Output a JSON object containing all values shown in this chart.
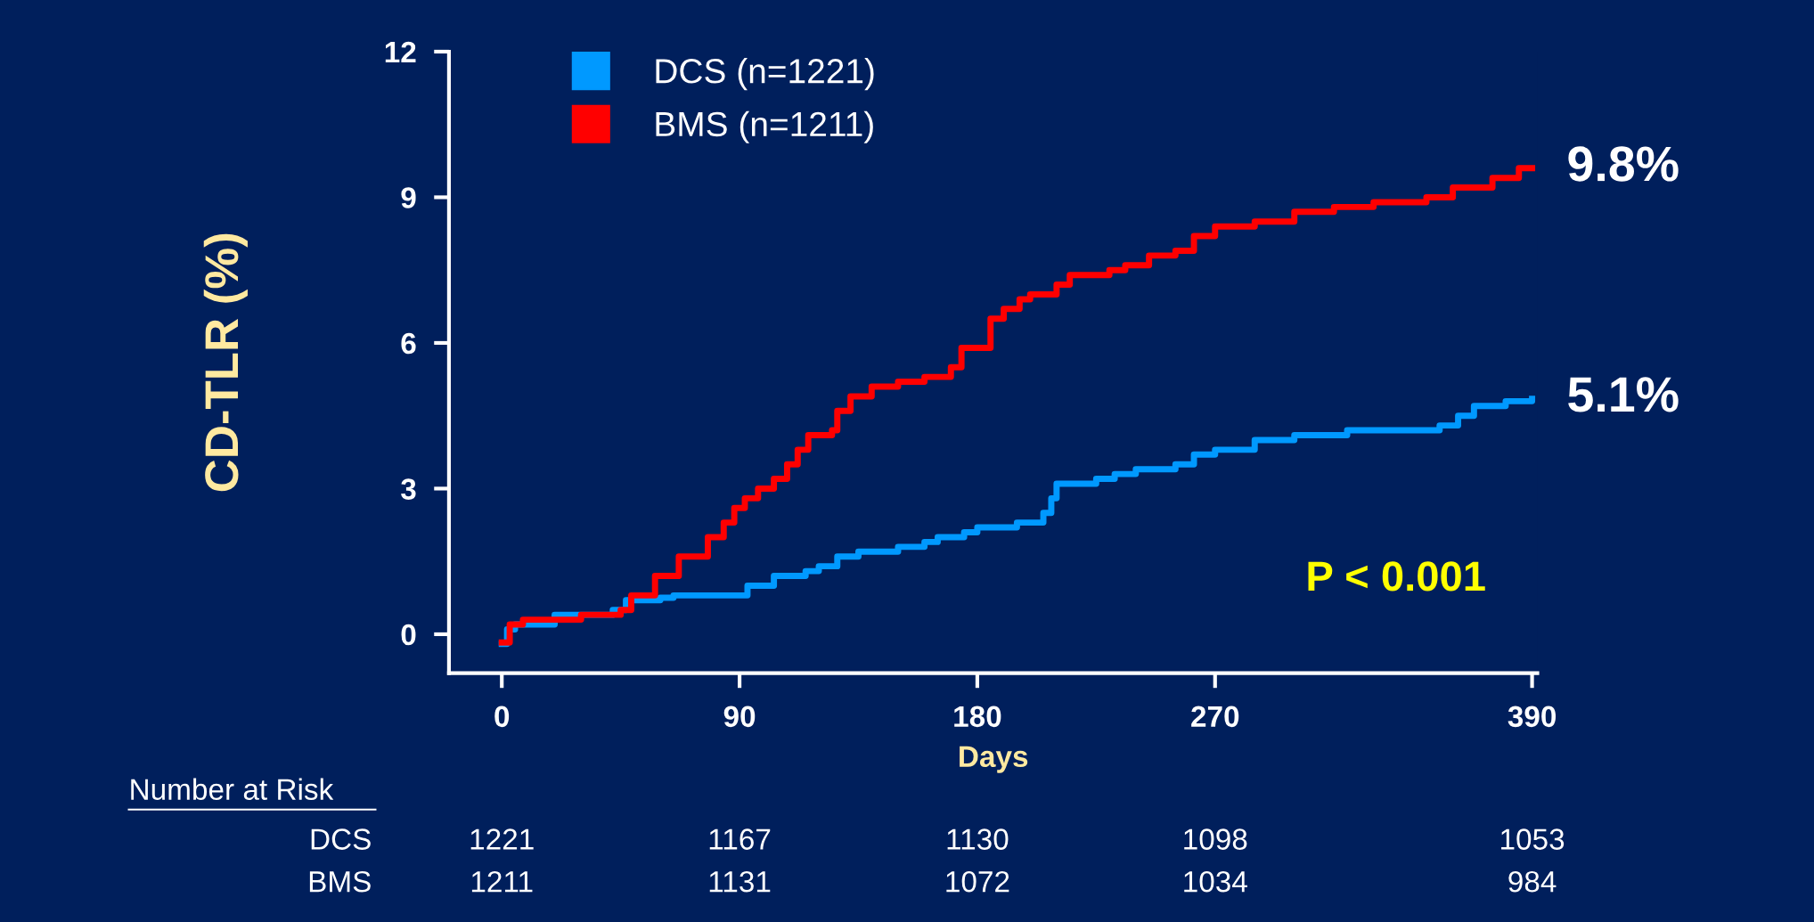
{
  "chart_data": {
    "type": "step",
    "xlabel": "Days",
    "ylabel": "CD-TLR (%)",
    "xlim": [
      -20,
      392
    ],
    "ylim": [
      -0.8,
      12
    ],
    "xticks": [
      0,
      90,
      180,
      270,
      390
    ],
    "yticks": [
      0,
      3,
      6,
      9,
      12
    ],
    "grid": false,
    "legend": "top left",
    "series": [
      {
        "name": "DCS (n=1221)",
        "color": "#0099ff",
        "x": [
          0,
          2,
          5,
          20,
          42,
          47,
          60,
          65,
          93,
          103,
          115,
          120,
          127,
          135,
          150,
          160,
          165,
          175,
          180,
          195,
          205,
          208,
          210,
          225,
          232,
          240,
          255,
          262,
          270,
          285,
          300,
          320,
          355,
          362,
          368,
          380,
          390
        ],
        "values": [
          -0.2,
          0.1,
          0.2,
          0.4,
          0.5,
          0.7,
          0.75,
          0.8,
          1.0,
          1.2,
          1.3,
          1.4,
          1.6,
          1.7,
          1.8,
          1.9,
          2.0,
          2.1,
          2.2,
          2.3,
          2.5,
          2.8,
          3.1,
          3.2,
          3.3,
          3.4,
          3.5,
          3.7,
          3.8,
          4.0,
          4.1,
          4.2,
          4.3,
          4.5,
          4.7,
          4.8,
          4.85
        ]
      },
      {
        "name": "BMS (n=1211)",
        "color": "#ff0000",
        "x": [
          0,
          3,
          8,
          30,
          45,
          49,
          58,
          67,
          78,
          84,
          88,
          92,
          97,
          103,
          108,
          112,
          116,
          125,
          127,
          132,
          140,
          150,
          160,
          170,
          174,
          185,
          190,
          196,
          200,
          210,
          215,
          230,
          236,
          245,
          255,
          262,
          270,
          285,
          300,
          315,
          330,
          350,
          360,
          375,
          385,
          390
        ],
        "values": [
          -0.17,
          0.2,
          0.3,
          0.4,
          0.5,
          0.8,
          1.2,
          1.6,
          2.0,
          2.3,
          2.6,
          2.8,
          3.0,
          3.2,
          3.5,
          3.8,
          4.1,
          4.2,
          4.6,
          4.9,
          5.1,
          5.2,
          5.3,
          5.5,
          5.9,
          6.5,
          6.7,
          6.9,
          7.0,
          7.2,
          7.4,
          7.5,
          7.6,
          7.8,
          7.9,
          8.2,
          8.4,
          8.5,
          8.7,
          8.8,
          8.9,
          9.0,
          9.2,
          9.4,
          9.6,
          9.6
        ]
      }
    ],
    "annotations": [
      {
        "text": "9.8%",
        "x": 390,
        "y": 9.6
      },
      {
        "text": "5.1%",
        "x": 390,
        "y": 4.85
      },
      "P < 0.001",
      "Number at Risk",
      "DCS",
      "1221",
      "1167",
      "1130",
      "1098",
      "1053",
      "BMS",
      "1211",
      "1131",
      "1072",
      "1034",
      "984"
    ]
  }
}
